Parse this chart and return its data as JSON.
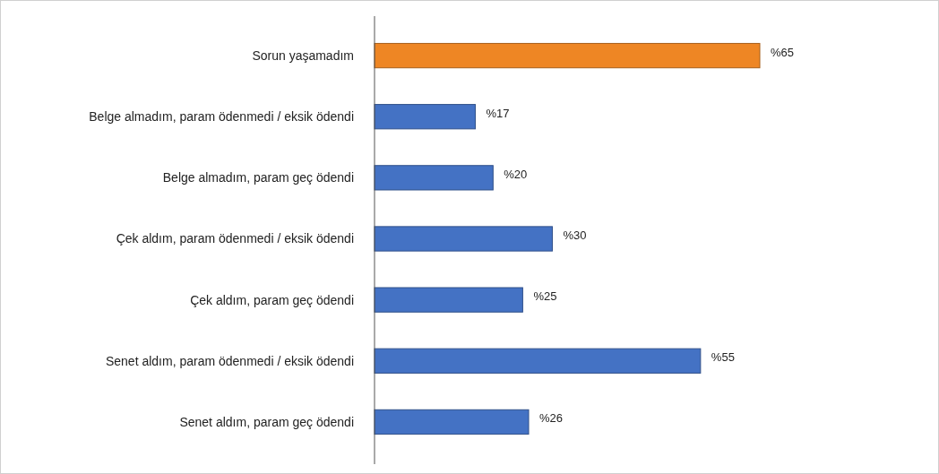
{
  "chart_data": {
    "type": "bar",
    "orientation": "horizontal",
    "categories": [
      "Sorun yaşamadım",
      "Belge almadım, param ödenmedi / eksik ödendi",
      "Belge almadım, param geç ödendi",
      "Çek aldım, param ödenmedi / eksik ödendi",
      "Çek aldım, param geç ödendi",
      "Senet aldım, param ödenmedi / eksik ödendi",
      "Senet aldım, param geç ödendi"
    ],
    "values": [
      65,
      17,
      20,
      30,
      25,
      55,
      26
    ],
    "colors": [
      "#ee8624",
      "#4472c4",
      "#4472c4",
      "#4472c4",
      "#4472c4",
      "#4472c4",
      "#4472c4"
    ],
    "value_labels": [
      "%65",
      "%17",
      "%20",
      "%30",
      "%25",
      "%55",
      "%26"
    ]
  }
}
